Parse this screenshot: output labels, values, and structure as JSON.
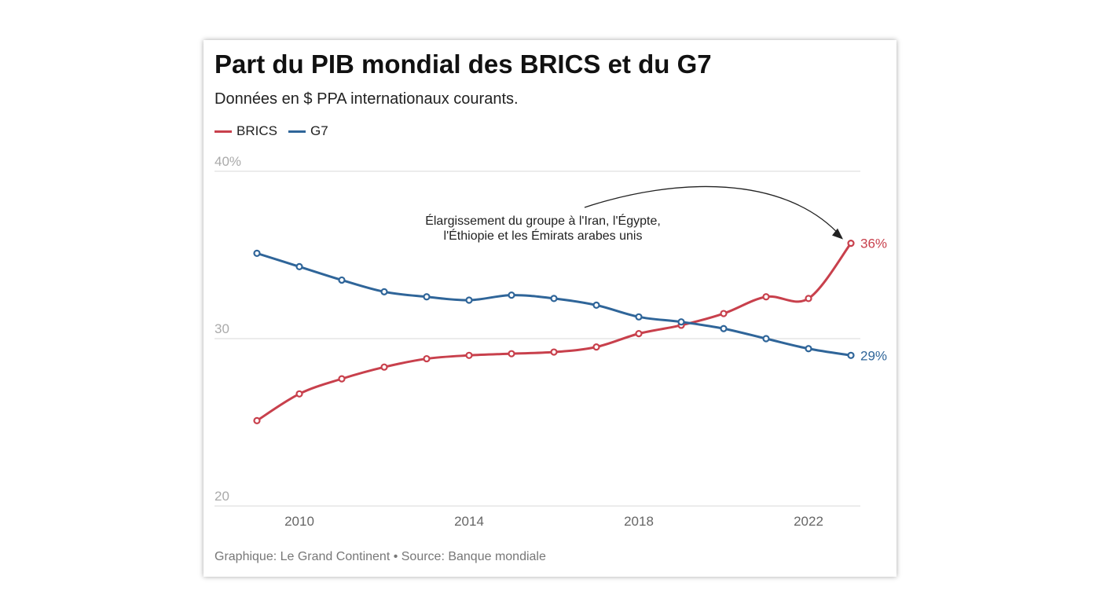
{
  "header": {
    "title": "Part du PIB mondial des BRICS et du G7",
    "subtitle": "Données en $ PPA internationaux courants."
  },
  "footer": {
    "source": "Graphique: Le Grand Continent • Source: Banque mondiale"
  },
  "chart_data": {
    "type": "line",
    "title": "Part du PIB mondial des BRICS et du G7",
    "subtitle": "Données en $ PPA internationaux courants.",
    "x": [
      2009,
      2010,
      2011,
      2012,
      2013,
      2014,
      2015,
      2016,
      2017,
      2018,
      2019,
      2020,
      2021,
      2022,
      2023
    ],
    "xticks": [
      2010,
      2014,
      2018,
      2022
    ],
    "xtick_labels": [
      "2010",
      "2014",
      "2018",
      "2022"
    ],
    "ylim": [
      20,
      40
    ],
    "yticks": [
      20,
      30,
      40
    ],
    "ytick_labels": [
      "20",
      "30",
      "40%"
    ],
    "grid": true,
    "legend": "top-left",
    "series": [
      {
        "name": "BRICS",
        "color": "#c8404c",
        "end_label": "36%",
        "values": [
          25.1,
          26.7,
          27.6,
          28.3,
          28.8,
          29.0,
          29.1,
          29.2,
          29.5,
          30.3,
          30.8,
          31.5,
          32.5,
          32.4,
          35.7
        ]
      },
      {
        "name": "G7",
        "color": "#2f6599",
        "end_label": "29%",
        "values": [
          35.1,
          34.3,
          33.5,
          32.8,
          32.5,
          32.3,
          32.6,
          32.4,
          32.0,
          31.3,
          31.0,
          30.6,
          30.0,
          29.4,
          29.0
        ]
      }
    ],
    "annotation": {
      "lines": [
        "Élargissement du groupe à l'Iran, l'Égypte,",
        "l'Éthiopie et les Émirats arabes unis"
      ],
      "target_series": "BRICS",
      "target_x": 2023
    }
  }
}
